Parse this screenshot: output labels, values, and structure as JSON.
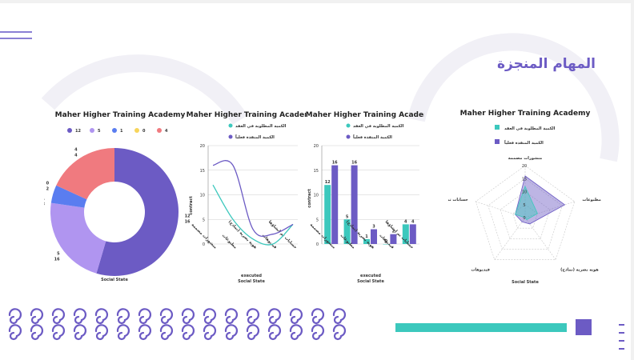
{
  "slide": {
    "title": "المهام المنجزة",
    "colors": {
      "purple": "#6c5bc4",
      "teal": "#3cc8bd",
      "lavender": "#b095f0",
      "blue": "#5a7df0",
      "yellow": "#f7d55b",
      "coral": "#f07a7f"
    }
  },
  "chart_data": [
    {
      "type": "pie",
      "title": "Maher Higher Training Academy",
      "legend": [
        "12",
        "5",
        "1",
        "0",
        "4"
      ],
      "legend_position": "top",
      "xlabel": "Social State",
      "rings": [
        {
          "values": [
            12,
            5,
            1,
            0,
            4
          ]
        },
        {
          "values": [
            16,
            16,
            3,
            2,
            4
          ]
        }
      ],
      "slice_labels": [
        [
          "12",
          "16"
        ],
        [
          "5",
          "16"
        ],
        [
          "1",
          "3"
        ],
        [
          "0",
          "2"
        ],
        [
          "4",
          "4"
        ]
      ],
      "colors": [
        "#6c5bc4",
        "#b095f0",
        "#5a7df0",
        "#f7d55b",
        "#f07a7f"
      ]
    },
    {
      "type": "line",
      "title": "Maher Higher Training Academy",
      "categories": [
        "منشورات مصممة",
        "مطبوعات",
        "هوية بصرية (نماذج)",
        "فيديوهات",
        "حسابات تم إنشاؤها"
      ],
      "series": [
        {
          "name": "الكمية المطلوبة في العقد",
          "values": [
            12,
            5,
            1,
            0,
            4
          ],
          "color": "#3cc8bd"
        },
        {
          "name": "الكمية المنفذة فعلياً",
          "values": [
            16,
            16,
            3,
            2,
            4
          ],
          "color": "#6c5bc4"
        }
      ],
      "ylabel": "contract",
      "xlabel": "executed",
      "xlabel2": "Social State",
      "ylim": [
        0,
        20
      ],
      "yticks": [
        "0",
        "5",
        "10",
        "15",
        "20"
      ],
      "grid": true,
      "legend_position": "top"
    },
    {
      "type": "bar",
      "title": "Maher Higher Training Academy",
      "categories": [
        "منشورات مصممة",
        "مطبوعات",
        "هوية بصرية (نماذج)",
        "فيديوهات",
        "حسابات تم إنشاؤها"
      ],
      "series": [
        {
          "name": "الكمية المطلوبة في العقد",
          "values": [
            12,
            5,
            1,
            0,
            4
          ],
          "color": "#3cc8bd"
        },
        {
          "name": "الكمية المنفذة فعلياً",
          "values": [
            16,
            16,
            3,
            2,
            4
          ],
          "color": "#6c5bc4"
        }
      ],
      "ylabel": "contract",
      "xlabel": "executed",
      "xlabel2": "Social State",
      "ylim": [
        0,
        20
      ],
      "yticks": [
        "0",
        "5",
        "10",
        "15",
        "20"
      ],
      "grid": true,
      "legend_position": "top"
    },
    {
      "type": "radar",
      "title": "Maher Higher Training Academy",
      "axes": [
        "منشورات مصممة",
        "مطبوعات",
        "هوية بصرية (نماذج)",
        "فيديوهات",
        "حسابات تم إنشاؤها"
      ],
      "series": [
        {
          "name": "الكمية المطلوبة في العقد",
          "values": [
            12,
            5,
            1,
            0,
            4
          ],
          "color": "#3cc8bd"
        },
        {
          "name": "الكمية المنفذة فعلياً",
          "values": [
            16,
            16,
            3,
            2,
            4
          ],
          "color": "#6c5bc4"
        }
      ],
      "xlabel": "Social State",
      "rlim": [
        0,
        20
      ],
      "rticks": [
        "0",
        "5",
        "10",
        "15",
        "20"
      ],
      "legend_position": "top"
    }
  ]
}
